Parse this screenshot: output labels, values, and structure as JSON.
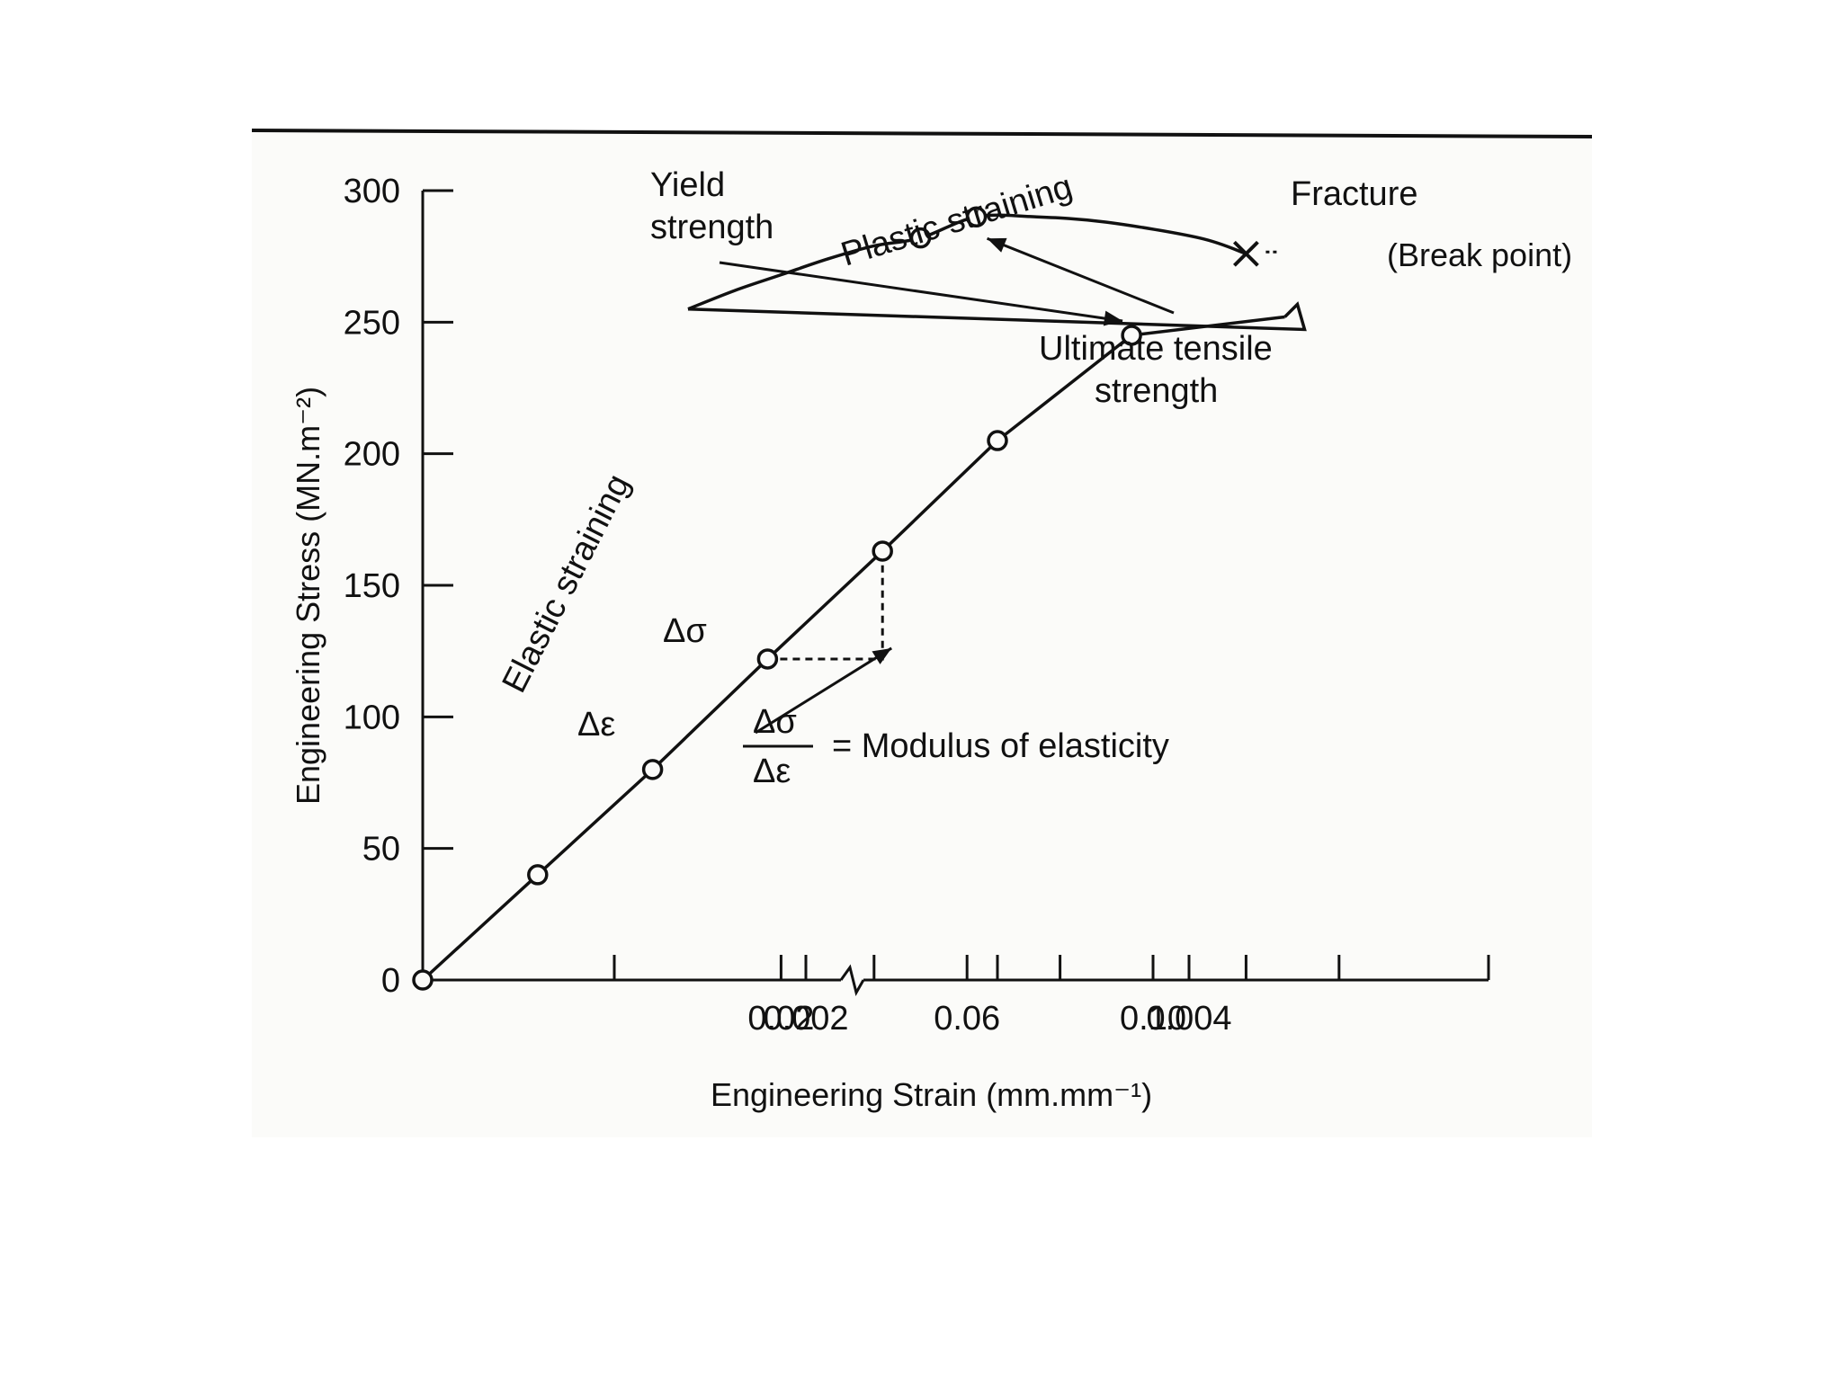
{
  "colors": {
    "ink": "#111111",
    "page": "#ffffff",
    "paper": "#fbfbf9"
  },
  "chart_data": {
    "type": "line",
    "title": "",
    "xlabel": "Engineering Strain (mm.mm⁻¹)",
    "ylabel": "Engineering Stress (MN.m⁻²)",
    "ylim": [
      0,
      300
    ],
    "y_ticks": [
      "0",
      "50",
      "100",
      "150",
      "200",
      "250",
      "300"
    ],
    "x_axis_segments": [
      {
        "range": [
          0,
          0.005
        ],
        "ticks": [
          0.001,
          0.002,
          0.003,
          0.004
        ],
        "tick_labels": [
          "0.002",
          "0.004"
        ],
        "label_values": [
          0.002,
          0.004
        ]
      },
      {
        "range": [
          0.0,
          0.14
        ],
        "ticks": [
          0.02,
          0.04,
          0.06,
          0.08,
          0.1,
          0.12,
          0.14
        ],
        "tick_labels": [
          "0.02",
          "0.06",
          "0.10"
        ],
        "label_values": [
          0.02,
          0.06,
          0.1
        ]
      }
    ],
    "grid": false,
    "series": [
      {
        "elastic_points": [
          {
            "x": 0.0,
            "y": 0
          },
          {
            "x": 0.0006,
            "y": 40
          },
          {
            "x": 0.0012,
            "y": 80
          },
          {
            "x": 0.0018,
            "y": 122
          },
          {
            "x": 0.0024,
            "y": 163
          },
          {
            "x": 0.003,
            "y": 205
          },
          {
            "x": 0.0037,
            "y": 245
          }
        ],
        "elastic_end": {
          "x": 0.0045,
          "y": 252
        },
        "plastic_start": {
          "x": 0.0,
          "y": 255
        },
        "plastic_points": [
          {
            "x": 0.05,
            "y": 282
          },
          {
            "x": 0.062,
            "y": 290
          }
        ],
        "plastic_curve": [
          {
            "x": 0.0,
            "y": 255
          },
          {
            "x": 0.01,
            "y": 262
          },
          {
            "x": 0.02,
            "y": 268
          },
          {
            "x": 0.03,
            "y": 274
          },
          {
            "x": 0.04,
            "y": 279
          },
          {
            "x": 0.05,
            "y": 282
          },
          {
            "x": 0.062,
            "y": 290
          },
          {
            "x": 0.075,
            "y": 290
          },
          {
            "x": 0.09,
            "y": 288
          },
          {
            "x": 0.11,
            "y": 282
          },
          {
            "x": 0.12,
            "y": 276
          }
        ],
        "break_point": {
          "x": 0.12,
          "y": 276
        }
      }
    ],
    "annotations": {
      "yield": [
        "Yield",
        "strength"
      ],
      "plastic": "Plastic straining",
      "fracture": "Fracture",
      "break_point": "(Break point)",
      "uts": [
        "Ultimate tensile",
        "strength"
      ],
      "elastic": "Elastic straining",
      "delta_sigma": "Δσ",
      "delta_epsilon": "Δε",
      "modulus": "= Modulus of elasticity"
    }
  }
}
